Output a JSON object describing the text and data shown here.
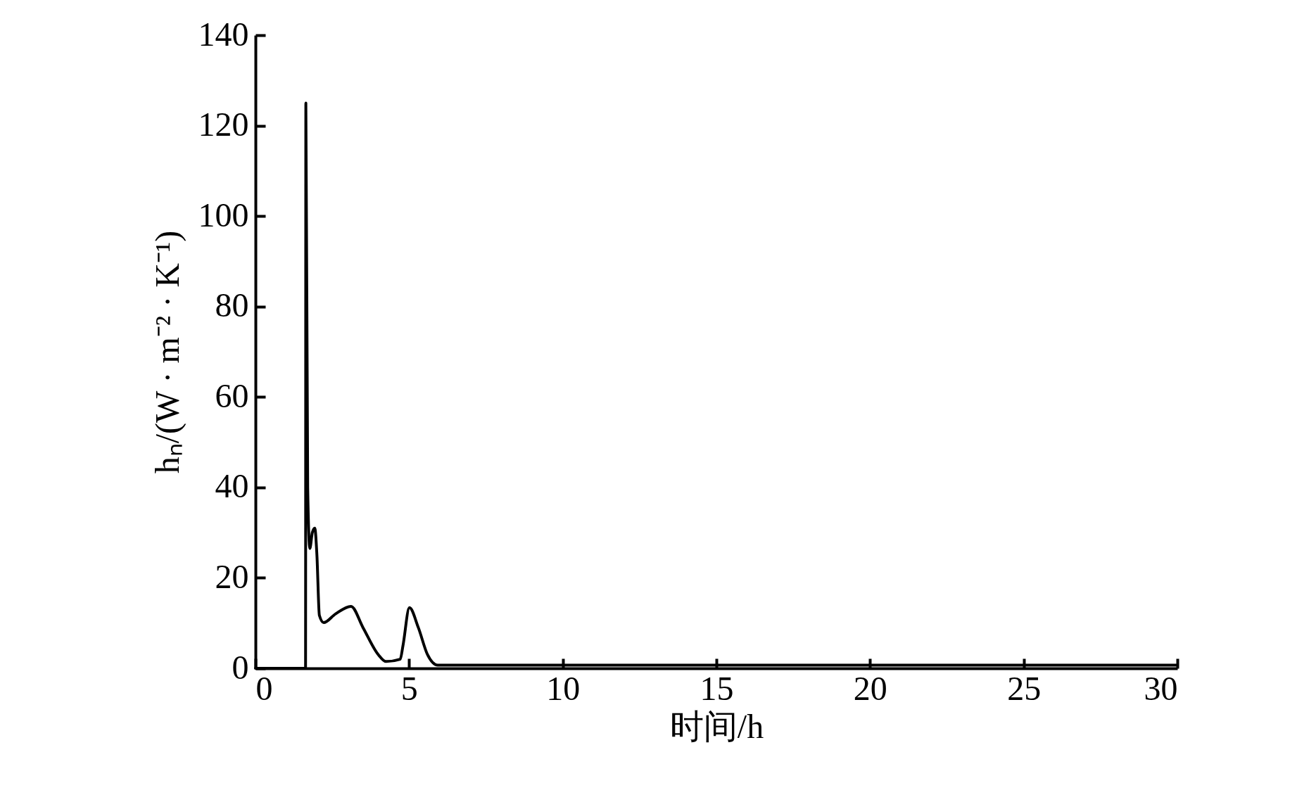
{
  "chart_data": {
    "type": "line",
    "xlabel": "时间/h",
    "ylabel": "hₙ/(W · m⁻² · K⁻¹)",
    "x": [
      0,
      1.63,
      1.64,
      1.7,
      1.77,
      1.85,
      1.93,
      2.0,
      2.08,
      2.22,
      2.6,
      3.11,
      3.5,
      4.0,
      4.25,
      4.71,
      4.8,
      5.01,
      5.3,
      5.6,
      5.93,
      10,
      20,
      30
    ],
    "series": [
      {
        "color": "#000000",
        "values": [
          0,
          0,
          125,
          40,
          26.5,
          30,
          31,
          25,
          11.7,
          10.1,
          12,
          13.7,
          9,
          3,
          1.5,
          2,
          5,
          13.4,
          9,
          3,
          0.7,
          0.7,
          0.7,
          0.7
        ]
      }
    ],
    "xlim": [
      0,
      30
    ],
    "xticks": [
      0,
      5,
      10,
      15,
      20,
      25,
      30
    ],
    "ylim": [
      0,
      140
    ],
    "yticks": [
      0,
      20,
      40,
      60,
      80,
      100,
      120,
      140
    ],
    "grid": false,
    "marker": "none",
    "line_style": "solid"
  }
}
